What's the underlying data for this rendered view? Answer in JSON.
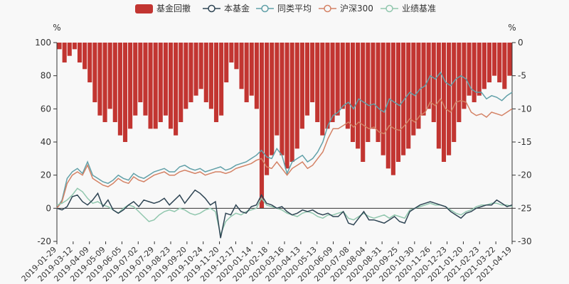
{
  "chart_data": {
    "type": "line",
    "legend_position": "top-center",
    "grid": false,
    "colors": {
      "drawdown": "#c23531",
      "fund": "#2f4554",
      "peer_avg": "#61a0a8",
      "csi300": "#d48265",
      "benchmark": "#91c7ae",
      "axis": "#333333"
    },
    "legend": [
      "基金回撤",
      "本基金",
      "同类平均",
      "沪深300",
      "业绩基准"
    ],
    "y_left": {
      "unit": "%",
      "min": -20,
      "max": 100,
      "ticks": [
        100,
        80,
        60,
        40,
        20,
        0,
        -20
      ]
    },
    "y_right": {
      "unit": "%",
      "min": -30,
      "max": 0,
      "ticks": [
        0,
        -5,
        -10,
        -15,
        -20,
        -25,
        -30
      ]
    },
    "x_ticks": [
      "2019-01-29",
      "2019-03-12",
      "2019-04-09",
      "2019-05-09",
      "2019-06-05",
      "2019-07-02",
      "2019-07-29",
      "2019-08-23",
      "2019-09-20",
      "2019-10-24",
      "2019-11-20",
      "2019-12-17",
      "2020-01-14",
      "2020-02-18",
      "2020-03-16",
      "2020-04-13",
      "2020-05-13",
      "2020-06-09",
      "2020-07-08",
      "2020-08-04",
      "2020-08-31",
      "2020-09-25",
      "2020-10-30",
      "2020-11-26",
      "2020-12-23",
      "2021-01-20",
      "2021-02-23",
      "2021-03-22",
      "2021-04-19"
    ],
    "series": [
      {
        "name": "本基金",
        "values": [
          0,
          -1,
          1,
          7,
          8,
          4,
          2,
          5,
          9,
          1,
          5,
          -1,
          -3,
          -1,
          2,
          4,
          1,
          5,
          4,
          3,
          4,
          6,
          2,
          5,
          8,
          3,
          7,
          11,
          9,
          6,
          2,
          4,
          -18,
          -3,
          -4,
          2,
          -2,
          -3,
          1,
          2,
          8,
          3,
          2,
          0,
          1,
          -2,
          -4,
          -3,
          -1,
          -2,
          -1,
          -3,
          -4,
          -3,
          -5,
          -5,
          -2,
          -9,
          -10,
          -6,
          -2,
          -7,
          -7,
          -8,
          -9,
          -7,
          -5,
          -8,
          -9,
          -2,
          0,
          2,
          3,
          4,
          3,
          2,
          1,
          -2,
          -4,
          -6,
          -3,
          -2,
          0,
          1,
          2,
          2,
          5,
          3,
          1,
          2
        ]
      },
      {
        "name": "同类平均",
        "values": [
          0,
          5,
          18,
          22,
          24,
          21,
          28,
          20,
          18,
          16,
          15,
          17,
          20,
          18,
          17,
          21,
          19,
          18,
          20,
          22,
          23,
          24,
          22,
          22,
          25,
          26,
          24,
          23,
          24,
          22,
          23,
          24,
          25,
          23,
          24,
          26,
          27,
          28,
          30,
          32,
          35,
          31,
          30,
          36,
          32,
          21,
          28,
          30,
          32,
          28,
          30,
          34,
          40,
          50,
          56,
          58,
          62,
          64,
          60,
          66,
          64,
          62,
          63,
          60,
          58,
          66,
          64,
          62,
          66,
          70,
          68,
          72,
          74,
          80,
          78,
          82,
          76,
          74,
          78,
          80,
          78,
          72,
          70,
          70,
          66,
          68,
          67,
          65,
          68,
          70
        ]
      },
      {
        "name": "沪深300",
        "values": [
          0,
          4,
          15,
          20,
          22,
          20,
          26,
          18,
          16,
          14,
          13,
          15,
          18,
          16,
          15,
          19,
          17,
          16,
          18,
          20,
          21,
          22,
          20,
          20,
          22,
          23,
          22,
          21,
          22,
          20,
          21,
          22,
          22,
          21,
          22,
          24,
          25,
          26,
          27,
          29,
          30,
          25,
          24,
          28,
          24,
          20,
          24,
          26,
          28,
          24,
          26,
          30,
          34,
          42,
          48,
          48,
          50,
          52,
          49,
          52,
          50,
          48,
          49,
          46,
          45,
          50,
          48,
          47,
          50,
          54,
          52,
          56,
          58,
          64,
          62,
          66,
          60,
          58,
          64,
          65,
          64,
          58,
          56,
          57,
          55,
          58,
          57,
          56,
          58,
          60
        ]
      },
      {
        "name": "业绩基准",
        "values": [
          2,
          3,
          5,
          8,
          12,
          10,
          6,
          3,
          4,
          2,
          1,
          -1,
          -3,
          0,
          2,
          1,
          -2,
          -5,
          -8,
          -7,
          -4,
          -2,
          -1,
          -2,
          0,
          -1,
          -3,
          -4,
          -3,
          -1,
          0,
          -2,
          -16,
          -8,
          -5,
          -3,
          -4,
          -2,
          -1,
          0,
          6,
          2,
          1,
          0,
          -1,
          -3,
          -4,
          -5,
          -3,
          -2,
          -3,
          -5,
          -6,
          -4,
          -4,
          -3,
          -2,
          -6,
          -7,
          -5,
          -3,
          -5,
          -6,
          -5,
          -4,
          -6,
          -4,
          -5,
          -6,
          -1,
          0,
          1,
          2,
          3,
          2,
          2,
          1,
          -1,
          -3,
          -4,
          -2,
          -1,
          1,
          2,
          2,
          3,
          3,
          2,
          2,
          1
        ]
      }
    ],
    "drawdown": {
      "name": "基金回撤",
      "axis": "right",
      "values": [
        -1,
        -3,
        -2,
        -1,
        -3,
        -4,
        -6,
        -9,
        -11,
        -12,
        -10,
        -12,
        -14,
        -15,
        -13,
        -11,
        -9,
        -11,
        -13,
        -13,
        -12,
        -11,
        -13,
        -14,
        -12,
        -10,
        -9,
        -8,
        -7,
        -9,
        -10,
        -12,
        -11,
        -6,
        -3,
        -4,
        -7,
        -9,
        -8,
        -10,
        -25,
        -20,
        -17,
        -14,
        -17,
        -19,
        -18,
        -16,
        -13,
        -11,
        -9,
        -12,
        -14,
        -13,
        -12,
        -11,
        -10,
        -13,
        -15,
        -16,
        -18,
        -15,
        -13,
        -15,
        -17,
        -19,
        -20,
        -18,
        -17,
        -16,
        -14,
        -13,
        -11,
        -10,
        -12,
        -16,
        -18,
        -17,
        -15,
        -12,
        -10,
        -8,
        -9,
        -8,
        -7,
        -6,
        -5,
        -6,
        -7,
        -5
      ]
    }
  }
}
